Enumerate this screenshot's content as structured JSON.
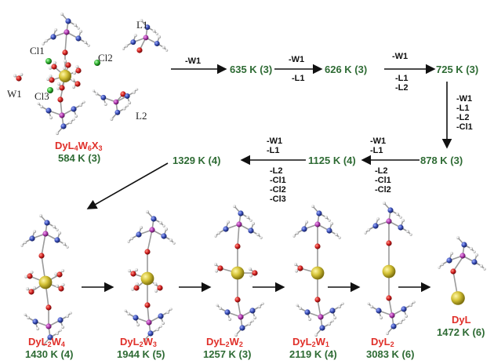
{
  "colors": {
    "temperature_text": "#2e6b34",
    "compound_label": "#e0302a",
    "dy_atom": "#c9b92c",
    "oxygen_atom": "#d42020",
    "nitrogen_atom": "#3a4fb8",
    "phosphorus_atom": "#b03ab0",
    "chlorine_atom": "#30b030",
    "hydrogen_atom": "#dddddd",
    "arrow": "#111111"
  },
  "atom_labels": {
    "l1": "L1",
    "l2": "L2",
    "w1": "W1",
    "cl1": "Cl1",
    "cl2": "Cl2",
    "cl3": "Cl3"
  },
  "start": {
    "name_base": "DyL",
    "n1": "4",
    "mid": "W",
    "n2": "6",
    "end": "X",
    "n3": "3",
    "temp": "584 K (3)"
  },
  "steps": {
    "s1": {
      "temp": "635 K (3)",
      "loss": [
        "-W1"
      ]
    },
    "s2": {
      "temp": "626 K (3)",
      "loss_top": [
        "-W1"
      ],
      "loss_bottom": [
        "-L1"
      ]
    },
    "s3": {
      "temp": "725 K (3)",
      "loss_top": [
        "-W1"
      ],
      "loss_bottom": [
        "-L1",
        "-L2"
      ]
    },
    "s4": {
      "temp": "878 K (3)",
      "loss": [
        "-W1",
        "-L1",
        "-L2",
        "-Cl1"
      ]
    },
    "s5": {
      "temp": "1125 K (4)",
      "loss_top": [
        "-W1",
        "-L1"
      ],
      "loss_bottom": [
        "-L2",
        "-Cl1",
        "-Cl2"
      ]
    },
    "s6": {
      "temp": "1329 K (4)",
      "loss_top": [
        "-W1",
        "-L1"
      ],
      "loss_bottom": [
        "-L2",
        "-Cl1",
        "-Cl2",
        "-Cl3"
      ]
    }
  },
  "products": [
    {
      "base": "DyL",
      "n1": "2",
      "mid": "W",
      "n2": "4",
      "temp": "1430 K (4)"
    },
    {
      "base": "DyL",
      "n1": "2",
      "mid": "W",
      "n2": "3",
      "temp": "1944 K (5)"
    },
    {
      "base": "DyL",
      "n1": "2",
      "mid": "W",
      "n2": "2",
      "temp": "1257 K (3)"
    },
    {
      "base": "DyL",
      "n1": "2",
      "mid": "W",
      "n2": "1",
      "temp": "2119 K (4)"
    },
    {
      "base": "DyL",
      "n1": "2",
      "mid": "",
      "n2": "",
      "temp": "3083 K (6)"
    },
    {
      "base": "DyL",
      "n1": "",
      "mid": "",
      "n2": "",
      "temp": "1472 K (6)"
    }
  ]
}
